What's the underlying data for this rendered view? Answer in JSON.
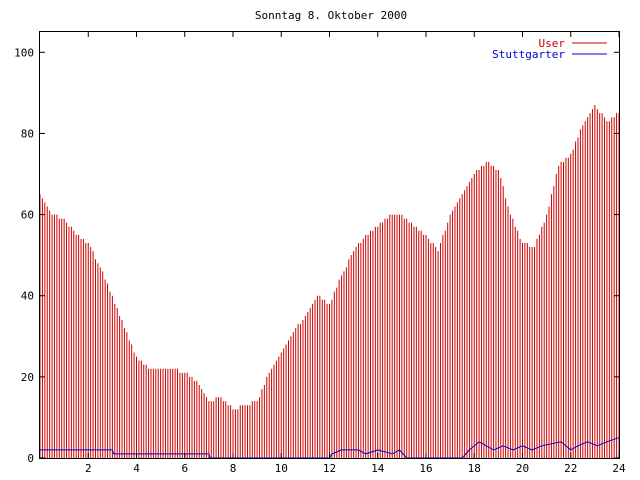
{
  "chart_data": {
    "type": "bar",
    "title": "Sonntag 8. Oktober 2000",
    "xlabel": "",
    "ylabel": "",
    "xlim": [
      0,
      24
    ],
    "ylim": [
      0,
      105
    ],
    "x_ticks": [
      2,
      4,
      6,
      8,
      10,
      12,
      14,
      16,
      18,
      20,
      22,
      24
    ],
    "x_tick_labels": [
      "2",
      "4",
      "6",
      "8",
      "10",
      "12",
      "14",
      "16",
      "18",
      "20",
      "22",
      "24"
    ],
    "y_ticks": [
      0,
      20,
      40,
      60,
      80,
      100
    ],
    "y_tick_labels": [
      "0",
      "20",
      "40",
      "60",
      "80",
      "100"
    ],
    "grid": false,
    "legend_position": "top-right",
    "hour_step": 0.1,
    "series": [
      {
        "name": "User",
        "color": "#cc0000",
        "style": "impulse",
        "points": [
          [
            0,
            65
          ],
          [
            0.5,
            60
          ],
          [
            1,
            59
          ],
          [
            1.5,
            55
          ],
          [
            2,
            53
          ],
          [
            2.5,
            47
          ],
          [
            3,
            40
          ],
          [
            3.5,
            32
          ],
          [
            4,
            25
          ],
          [
            4.5,
            22
          ],
          [
            5,
            22
          ],
          [
            5.5,
            22
          ],
          [
            6,
            21
          ],
          [
            6.5,
            19
          ],
          [
            7,
            14
          ],
          [
            7.5,
            15
          ],
          [
            8,
            12
          ],
          [
            8.5,
            13
          ],
          [
            9,
            14
          ],
          [
            9.5,
            21
          ],
          [
            10,
            26
          ],
          [
            10.5,
            31
          ],
          [
            11,
            35
          ],
          [
            11.5,
            40
          ],
          [
            12,
            38
          ],
          [
            12.5,
            45
          ],
          [
            13,
            51
          ],
          [
            13.5,
            55
          ],
          [
            14,
            57
          ],
          [
            14.5,
            60
          ],
          [
            15,
            60
          ],
          [
            15.5,
            57
          ],
          [
            16,
            55
          ],
          [
            16.5,
            51
          ],
          [
            17,
            60
          ],
          [
            17.5,
            65
          ],
          [
            18,
            70
          ],
          [
            18.5,
            73
          ],
          [
            19,
            71
          ],
          [
            19.5,
            60
          ],
          [
            20,
            53
          ],
          [
            20.5,
            52
          ],
          [
            21,
            60
          ],
          [
            21.5,
            72
          ],
          [
            22,
            75
          ],
          [
            22.5,
            82
          ],
          [
            23,
            87
          ],
          [
            23.5,
            83
          ],
          [
            24,
            85
          ]
        ]
      },
      {
        "name": "Stuttgarter",
        "color": "#0000cc",
        "style": "line",
        "points": [
          [
            0,
            2
          ],
          [
            3.0,
            2
          ],
          [
            3.05,
            1
          ],
          [
            7.0,
            1
          ],
          [
            7.05,
            0
          ],
          [
            12.0,
            0
          ],
          [
            12.1,
            1
          ],
          [
            12.5,
            2
          ],
          [
            13.2,
            2
          ],
          [
            13.5,
            1
          ],
          [
            14.0,
            2
          ],
          [
            14.6,
            1
          ],
          [
            14.9,
            2
          ],
          [
            15.2,
            0
          ],
          [
            17.5,
            0
          ],
          [
            17.8,
            2
          ],
          [
            18.2,
            4
          ],
          [
            18.5,
            3
          ],
          [
            18.8,
            2
          ],
          [
            19.2,
            3
          ],
          [
            19.6,
            2
          ],
          [
            20.0,
            3
          ],
          [
            20.4,
            2
          ],
          [
            20.8,
            3
          ],
          [
            21.6,
            4
          ],
          [
            22.0,
            2
          ],
          [
            22.3,
            3
          ],
          [
            22.7,
            4
          ],
          [
            23.1,
            3
          ],
          [
            23.5,
            4
          ],
          [
            24,
            5
          ]
        ]
      }
    ]
  }
}
